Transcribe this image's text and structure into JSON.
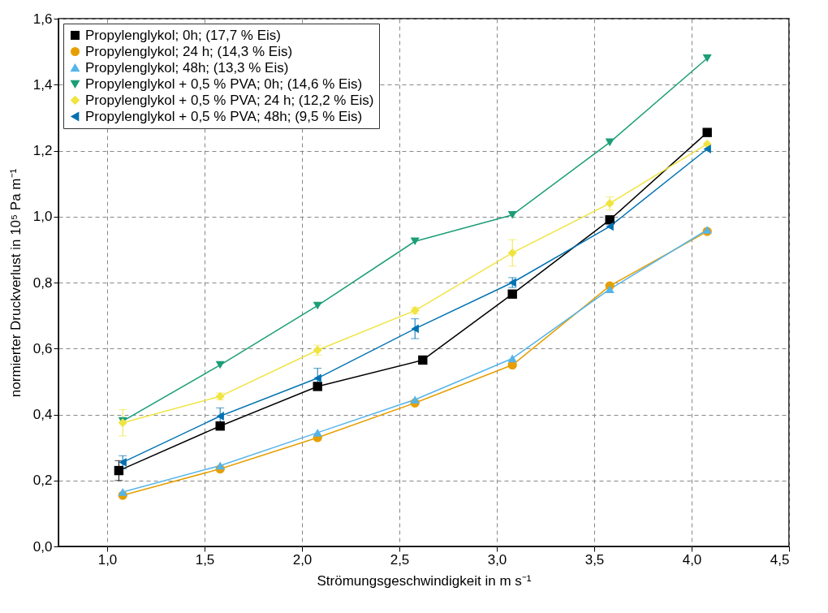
{
  "chart_data": {
    "type": "line",
    "xlabel": "Strömungsgeschwindigkeit in m s⁻¹",
    "ylabel": "normierter Druckverlust in 10⁵ Pa m⁻¹",
    "xlim": [
      0.75,
      4.5
    ],
    "xticks": [
      {
        "value": 1.0,
        "label": "1,0"
      },
      {
        "value": 1.5,
        "label": "1,5"
      },
      {
        "value": 2.0,
        "label": "2,0"
      },
      {
        "value": 2.5,
        "label": "2,5"
      },
      {
        "value": 3.0,
        "label": "3,0"
      },
      {
        "value": 3.5,
        "label": "3,5"
      },
      {
        "value": 4.0,
        "label": "4,0"
      },
      {
        "value": 4.5,
        "label": "4,5"
      }
    ],
    "ylim": [
      0,
      1.6
    ],
    "yticks": [
      {
        "value": 0,
        "label": "0,0"
      },
      {
        "value": 0.2,
        "label": "0,2"
      },
      {
        "value": 0.4,
        "label": "0,4"
      },
      {
        "value": 0.6,
        "label": "0,6"
      },
      {
        "value": 0.8,
        "label": "0,8"
      },
      {
        "value": 1.0,
        "label": "1,0"
      },
      {
        "value": 1.2,
        "label": "1,2"
      },
      {
        "value": 1.4,
        "label": "1,4"
      },
      {
        "value": 1.6,
        "label": "1,6"
      }
    ],
    "grid": true,
    "legend": "top left",
    "line_style": "solid",
    "series": [
      {
        "name": "Propylenglykol; 0h; (17,7 % Eis)",
        "color": "#000000",
        "marker": "square",
        "x": [
          1.06,
          1.58,
          2.08,
          2.62,
          3.08,
          3.58,
          4.08
        ],
        "values": [
          0.23,
          0.365,
          0.485,
          0.565,
          0.765,
          0.99,
          1.255
        ],
        "errors": [
          0.03,
          null,
          null,
          null,
          null,
          null,
          null
        ]
      },
      {
        "name": "Propylenglykol; 24 h; (14,3 % Eis)",
        "color": "#e69f00",
        "marker": "circle",
        "x": [
          1.08,
          1.58,
          2.08,
          2.58,
          3.08,
          3.58,
          4.08
        ],
        "values": [
          0.155,
          0.235,
          0.33,
          0.435,
          0.55,
          0.79,
          0.955
        ]
      },
      {
        "name": "Propylenglykol; 48h; (13,3 % Eis)",
        "color": "#56b4e9",
        "marker": "triangle",
        "x": [
          1.08,
          1.58,
          2.08,
          2.58,
          3.08,
          3.58,
          4.08
        ],
        "values": [
          0.165,
          0.245,
          0.345,
          0.445,
          0.57,
          0.78,
          0.96
        ]
      },
      {
        "name": "Propylenglykol + 0,5 % PVA; 0h; (14,6 % Eis)",
        "color": "#1b9e77",
        "marker": "triangle-down",
        "x": [
          1.08,
          1.58,
          2.08,
          2.58,
          3.08,
          3.58,
          4.08
        ],
        "values": [
          0.38,
          0.55,
          0.73,
          0.925,
          1.005,
          1.225,
          1.48
        ]
      },
      {
        "name": "Propylenglykol + 0,5 % PVA; 24 h; (12,2 % Eis)",
        "color": "#f0e442",
        "marker": "diamond",
        "x": [
          1.08,
          1.58,
          2.08,
          2.58,
          3.08,
          3.58,
          4.08
        ],
        "values": [
          0.375,
          0.455,
          0.595,
          0.715,
          0.89,
          1.04,
          1.22
        ],
        "errors": [
          0.04,
          0.01,
          0.015,
          0.01,
          0.04,
          0.02,
          null
        ]
      },
      {
        "name": "Propylenglykol + 0,5 % PVA; 48h; (9,5 % Eis)",
        "color": "#0072b2",
        "marker": "triangle-left",
        "x": [
          1.08,
          1.58,
          2.08,
          2.58,
          3.08,
          3.58,
          4.08
        ],
        "values": [
          0.255,
          0.395,
          0.51,
          0.66,
          0.8,
          0.97,
          1.205
        ],
        "errors": [
          0.02,
          0.025,
          0.03,
          0.03,
          0.015,
          null,
          null
        ]
      }
    ]
  }
}
